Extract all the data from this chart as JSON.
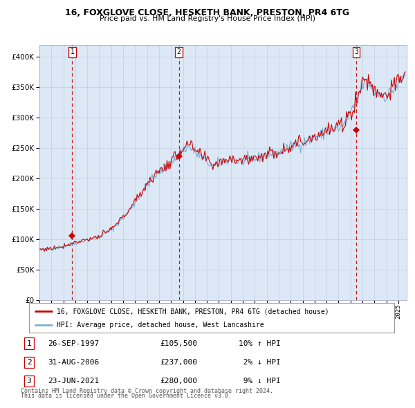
{
  "title1": "16, FOXGLOVE CLOSE, HESKETH BANK, PRESTON, PR4 6TG",
  "title2": "Price paid vs. HM Land Registry's House Price Index (HPI)",
  "legend_red": "16, FOXGLOVE CLOSE, HESKETH BANK, PRESTON, PR4 6TG (detached house)",
  "legend_blue": "HPI: Average price, detached house, West Lancashire",
  "footer1": "Contains HM Land Registry data © Crown copyright and database right 2024.",
  "footer2": "This data is licensed under the Open Government Licence v3.0.",
  "transactions": [
    {
      "num": 1,
      "date": "26-SEP-1997",
      "price": 105500,
      "pct": "10%",
      "dir": "↑",
      "x_year": 1997.74
    },
    {
      "num": 2,
      "date": "31-AUG-2006",
      "price": 237000,
      "pct": "2%",
      "dir": "↓",
      "x_year": 2006.66
    },
    {
      "num": 3,
      "date": "23-JUN-2021",
      "price": 280000,
      "pct": "9%",
      "dir": "↓",
      "x_year": 2021.48
    }
  ],
  "plot_bg": "#dce8f5",
  "grid_color": "#c0cfe0",
  "red_line_color": "#cc0000",
  "blue_line_color": "#7aafd4",
  "dot_color": "#cc0000",
  "dashed_line_color": "#cc0000",
  "ylim": [
    0,
    420000
  ],
  "xlim_start": 1995.0,
  "xlim_end": 2025.7,
  "hpi_waypoints_years": [
    1995.0,
    1996.0,
    1997.0,
    1998.0,
    1999.0,
    2000.0,
    2001.0,
    2002.0,
    2003.0,
    2004.0,
    2005.0,
    2006.0,
    2007.0,
    2007.5,
    2008.5,
    2009.5,
    2010.0,
    2011.0,
    2012.0,
    2013.0,
    2014.0,
    2015.0,
    2016.0,
    2017.0,
    2018.0,
    2019.0,
    2020.0,
    2020.5,
    2021.5,
    2022.0,
    2022.5,
    2023.0,
    2024.0,
    2025.0,
    2025.5
  ],
  "hpi_waypoints_vals": [
    82000,
    84000,
    88000,
    94000,
    99000,
    103000,
    115000,
    135000,
    160000,
    190000,
    210000,
    225000,
    248000,
    252000,
    235000,
    220000,
    225000,
    232000,
    228000,
    232000,
    238000,
    242000,
    252000,
    258000,
    268000,
    275000,
    282000,
    288000,
    325000,
    355000,
    360000,
    342000,
    335000,
    355000,
    370000
  ]
}
